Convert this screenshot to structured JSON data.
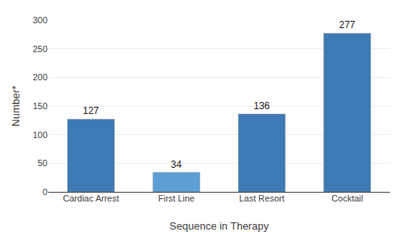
{
  "chart_data": {
    "type": "bar",
    "categories": [
      "Cardiac Arrest",
      "First Line",
      "Last Resort",
      "Cocktail"
    ],
    "values": [
      127,
      34,
      136,
      277
    ],
    "colors": [
      "#3d7ab5",
      "#5b9fd4",
      "#3d7ab5",
      "#3d7ab5"
    ],
    "xlabel": "Sequence in Therapy",
    "ylabel": "Number*",
    "ylim": [
      0,
      300
    ],
    "yticks": [
      0,
      50,
      100,
      150,
      200,
      250,
      300
    ],
    "grid": true,
    "data_labels": true
  }
}
